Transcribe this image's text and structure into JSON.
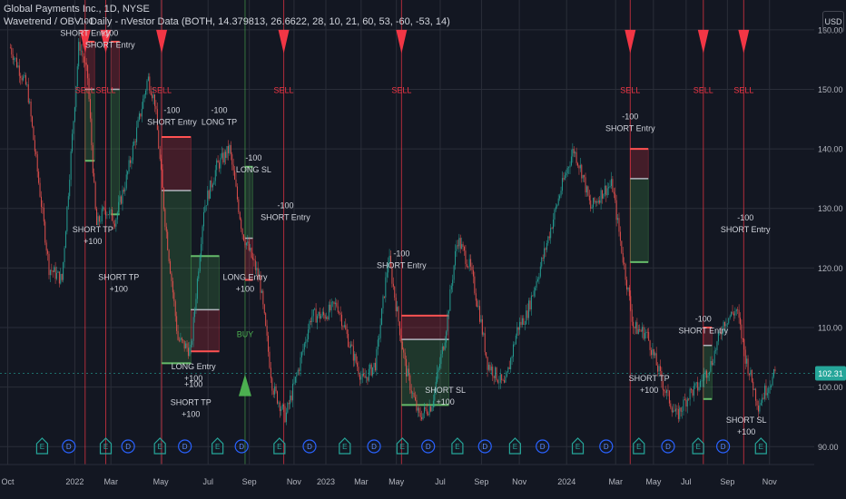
{
  "header": {
    "title": "Global Payments Inc., 1D, NYSE",
    "indicator": "Wavetrend / OBV - Daily - nVestor Data (BOTH, 14.379813, 26.6622, 28, 10, 21, 60, 53, -60, -53, 14)",
    "currency": "USD"
  },
  "colors": {
    "bg": "#131722",
    "grid": "#2a2e39",
    "up": "#26a69a",
    "down": "#ef5350",
    "sell": "#f23645",
    "buy": "#4caf50",
    "signal": "#e040fb",
    "last_price_bg": "#26a69a"
  },
  "chart_data": {
    "type": "candlestick",
    "ylim": [
      87,
      165
    ],
    "y_ticks": [
      "90.00",
      "100.00",
      "110.00",
      "120.00",
      "130.00",
      "140.00",
      "150.00",
      "160.00"
    ],
    "x_ticks": [
      "Oct",
      "2022",
      "Mar",
      "May",
      "Jul",
      "Sep",
      "Nov",
      "2023",
      "Mar",
      "May",
      "Jul",
      "Sep",
      "Nov",
      "2024",
      "Mar",
      "May",
      "Jul",
      "Sep",
      "Nov"
    ],
    "last_price": "102.31",
    "price_path": [
      {
        "d": 0,
        "v": 157
      },
      {
        "d": 20,
        "v": 150
      },
      {
        "d": 45,
        "v": 120
      },
      {
        "d": 60,
        "v": 118
      },
      {
        "d": 80,
        "v": 158
      },
      {
        "d": 90,
        "v": 152
      },
      {
        "d": 100,
        "v": 127
      },
      {
        "d": 110,
        "v": 130
      },
      {
        "d": 122,
        "v": 128
      },
      {
        "d": 135,
        "v": 135
      },
      {
        "d": 150,
        "v": 145
      },
      {
        "d": 160,
        "v": 152
      },
      {
        "d": 168,
        "v": 148
      },
      {
        "d": 180,
        "v": 128
      },
      {
        "d": 195,
        "v": 108
      },
      {
        "d": 210,
        "v": 106
      },
      {
        "d": 225,
        "v": 130
      },
      {
        "d": 240,
        "v": 137
      },
      {
        "d": 255,
        "v": 140
      },
      {
        "d": 270,
        "v": 126
      },
      {
        "d": 290,
        "v": 118
      },
      {
        "d": 305,
        "v": 100
      },
      {
        "d": 320,
        "v": 95
      },
      {
        "d": 335,
        "v": 103
      },
      {
        "d": 350,
        "v": 112
      },
      {
        "d": 365,
        "v": 112
      },
      {
        "d": 380,
        "v": 114
      },
      {
        "d": 395,
        "v": 107
      },
      {
        "d": 410,
        "v": 101
      },
      {
        "d": 425,
        "v": 104
      },
      {
        "d": 440,
        "v": 122
      },
      {
        "d": 460,
        "v": 103
      },
      {
        "d": 475,
        "v": 95
      },
      {
        "d": 490,
        "v": 97
      },
      {
        "d": 505,
        "v": 108
      },
      {
        "d": 520,
        "v": 125
      },
      {
        "d": 535,
        "v": 120
      },
      {
        "d": 545,
        "v": 113
      },
      {
        "d": 555,
        "v": 104
      },
      {
        "d": 575,
        "v": 100
      },
      {
        "d": 590,
        "v": 110
      },
      {
        "d": 600,
        "v": 112
      },
      {
        "d": 620,
        "v": 122
      },
      {
        "d": 640,
        "v": 133
      },
      {
        "d": 655,
        "v": 140
      },
      {
        "d": 665,
        "v": 136
      },
      {
        "d": 675,
        "v": 130
      },
      {
        "d": 690,
        "v": 133
      },
      {
        "d": 700,
        "v": 134
      },
      {
        "d": 710,
        "v": 124
      },
      {
        "d": 725,
        "v": 110
      },
      {
        "d": 740,
        "v": 109
      },
      {
        "d": 760,
        "v": 100
      },
      {
        "d": 775,
        "v": 95
      },
      {
        "d": 790,
        "v": 99
      },
      {
        "d": 800,
        "v": 100
      },
      {
        "d": 815,
        "v": 104
      },
      {
        "d": 830,
        "v": 111
      },
      {
        "d": 845,
        "v": 113
      },
      {
        "d": 855,
        "v": 105
      },
      {
        "d": 870,
        "v": 97
      },
      {
        "d": 880,
        "v": 100
      },
      {
        "d": 890,
        "v": 102.3
      }
    ],
    "signals": [
      {
        "type": "SELL",
        "label": "SELL",
        "d": 87
      },
      {
        "type": "SELL",
        "label": "SELL",
        "d": 111
      },
      {
        "type": "SELL",
        "label": "SELL",
        "d": 176
      },
      {
        "type": "SELL",
        "label": "SELL",
        "d": 318
      },
      {
        "type": "SELL",
        "label": "SELL",
        "d": 455
      },
      {
        "type": "SELL",
        "label": "SELL",
        "d": 721
      },
      {
        "type": "SELL",
        "label": "SELL",
        "d": 806
      },
      {
        "type": "SELL",
        "label": "SELL",
        "d": 853
      },
      {
        "type": "BUY",
        "label": "BUY",
        "d": 273
      }
    ],
    "positions": [
      {
        "side": "short",
        "d0": 87,
        "d1": 98,
        "entry": 150,
        "stop": 158,
        "target": 138
      },
      {
        "side": "short",
        "d0": 117,
        "d1": 127,
        "entry": 150,
        "stop": 158,
        "target": 129
      },
      {
        "side": "short",
        "d0": 176,
        "d1": 210,
        "entry": 133,
        "stop": 142,
        "target": 104
      },
      {
        "side": "long",
        "d0": 210,
        "d1": 243,
        "entry": 113,
        "stop": 106,
        "target": 122
      },
      {
        "side": "long",
        "d0": 273,
        "d1": 282,
        "entry": 125,
        "stop": 118,
        "target": 137
      },
      {
        "side": "short",
        "d0": 455,
        "d1": 510,
        "entry": 108,
        "stop": 112,
        "target": 97
      },
      {
        "side": "short",
        "d0": 721,
        "d1": 742,
        "entry": 135,
        "stop": 140,
        "target": 121
      },
      {
        "side": "short",
        "d0": 806,
        "d1": 816,
        "entry": 107,
        "stop": 110,
        "target": 98
      }
    ],
    "annotations": [
      {
        "lines": [
          "-100",
          "SHORT Entry"
        ],
        "d": 87,
        "v": 161
      },
      {
        "lines": [
          "-100",
          "SHORT Entry"
        ],
        "d": 116,
        "v": 159
      },
      {
        "lines": [
          "-100",
          "SHORT Entry"
        ],
        "d": 188,
        "v": 146
      },
      {
        "lines": [
          "-100",
          "LONG TP"
        ],
        "d": 243,
        "v": 146
      },
      {
        "lines": [
          "-100",
          "LONG SL"
        ],
        "d": 283,
        "v": 138
      },
      {
        "lines": [
          "-100",
          "SHORT Entry"
        ],
        "d": 320,
        "v": 130
      },
      {
        "lines": [
          "-100",
          "SHORT Entry"
        ],
        "d": 455,
        "v": 122
      },
      {
        "lines": [
          "-100",
          "SHORT Entry"
        ],
        "d": 721,
        "v": 145
      },
      {
        "lines": [
          "-100",
          "SHORT Entry"
        ],
        "d": 806,
        "v": 111
      },
      {
        "lines": [
          "-100",
          "SHORT Entry"
        ],
        "d": 855,
        "v": 128
      },
      {
        "lines": [
          "SHORT TP",
          "+100"
        ],
        "d": 96,
        "v": 126
      },
      {
        "lines": [
          "SHORT TP",
          "+100"
        ],
        "d": 126,
        "v": 118
      },
      {
        "lines": [
          "LONG Entry",
          "+100"
        ],
        "d": 273,
        "v": 118
      },
      {
        "lines": [
          "LONG Entry",
          "+100"
        ],
        "d": 213,
        "v": 103
      },
      {
        "lines": [
          "+100"
        ],
        "d": 213,
        "v": 100
      },
      {
        "lines": [
          "SHORT TP",
          "+100"
        ],
        "d": 210,
        "v": 97
      },
      {
        "lines": [
          "SHORT SL",
          "+100"
        ],
        "d": 506,
        "v": 99
      },
      {
        "lines": [
          "SHORT TP",
          "+100"
        ],
        "d": 743,
        "v": 101
      },
      {
        "lines": [
          "SHORT SL",
          "+100"
        ],
        "d": 856,
        "v": 94
      }
    ],
    "event_markers": [
      {
        "kind": "E",
        "d": 37
      },
      {
        "kind": "D",
        "d": 68
      },
      {
        "kind": "E",
        "d": 111
      },
      {
        "kind": "D",
        "d": 137
      },
      {
        "kind": "E",
        "d": 174
      },
      {
        "kind": "D",
        "d": 203
      },
      {
        "kind": "E",
        "d": 241
      },
      {
        "kind": "D",
        "d": 269
      },
      {
        "kind": "E",
        "d": 313
      },
      {
        "kind": "D",
        "d": 348
      },
      {
        "kind": "E",
        "d": 389
      },
      {
        "kind": "D",
        "d": 423
      },
      {
        "kind": "E",
        "d": 456
      },
      {
        "kind": "D",
        "d": 486
      },
      {
        "kind": "E",
        "d": 520
      },
      {
        "kind": "D",
        "d": 552
      },
      {
        "kind": "E",
        "d": 587
      },
      {
        "kind": "D",
        "d": 619
      },
      {
        "kind": "E",
        "d": 660
      },
      {
        "kind": "D",
        "d": 693
      },
      {
        "kind": "E",
        "d": 731
      },
      {
        "kind": "D",
        "d": 765
      },
      {
        "kind": "E",
        "d": 800
      },
      {
        "kind": "D",
        "d": 829
      },
      {
        "kind": "E",
        "d": 873
      }
    ]
  }
}
